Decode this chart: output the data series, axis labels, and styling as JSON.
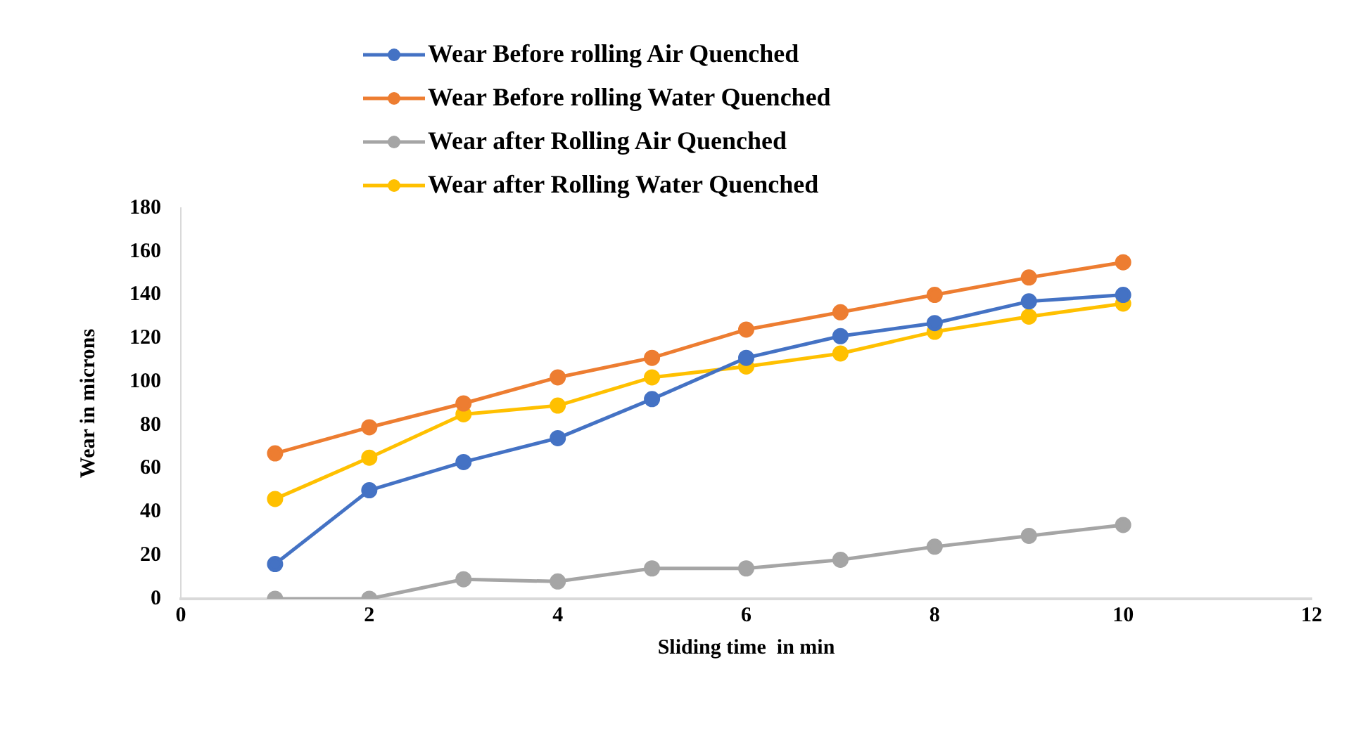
{
  "chart_data": {
    "type": "line",
    "xlabel": "Sliding time  in min",
    "ylabel": "Wear in microns",
    "x": [
      1,
      2,
      3,
      4,
      5,
      6,
      7,
      8,
      9,
      10
    ],
    "series": [
      {
        "name": "Wear Before rolling Air Quenched",
        "color": "#4472c4",
        "values": [
          16,
          50,
          63,
          74,
          92,
          111,
          121,
          127,
          137,
          140
        ]
      },
      {
        "name": "Wear Before rolling Water Quenched",
        "color": "#ed7d31",
        "values": [
          67,
          79,
          90,
          102,
          111,
          124,
          132,
          140,
          148,
          155
        ]
      },
      {
        "name": "Wear after Rolling Air Quenched",
        "color": "#a5a5a5",
        "values": [
          0,
          0,
          9,
          8,
          14,
          14,
          18,
          24,
          29,
          34
        ]
      },
      {
        "name": "Wear after Rolling Water Quenched",
        "color": "#ffc000",
        "values": [
          46,
          65,
          85,
          89,
          102,
          107,
          113,
          123,
          130,
          136
        ]
      }
    ],
    "xlim": [
      0,
      12
    ],
    "xticks": [
      0,
      2,
      4,
      6,
      8,
      10,
      12
    ],
    "ylim": [
      0,
      180
    ],
    "yticks": [
      0,
      20,
      40,
      60,
      80,
      100,
      120,
      140,
      160,
      180
    ],
    "grid": false,
    "legend": "top",
    "marker": "circle",
    "line_style": "solid"
  }
}
